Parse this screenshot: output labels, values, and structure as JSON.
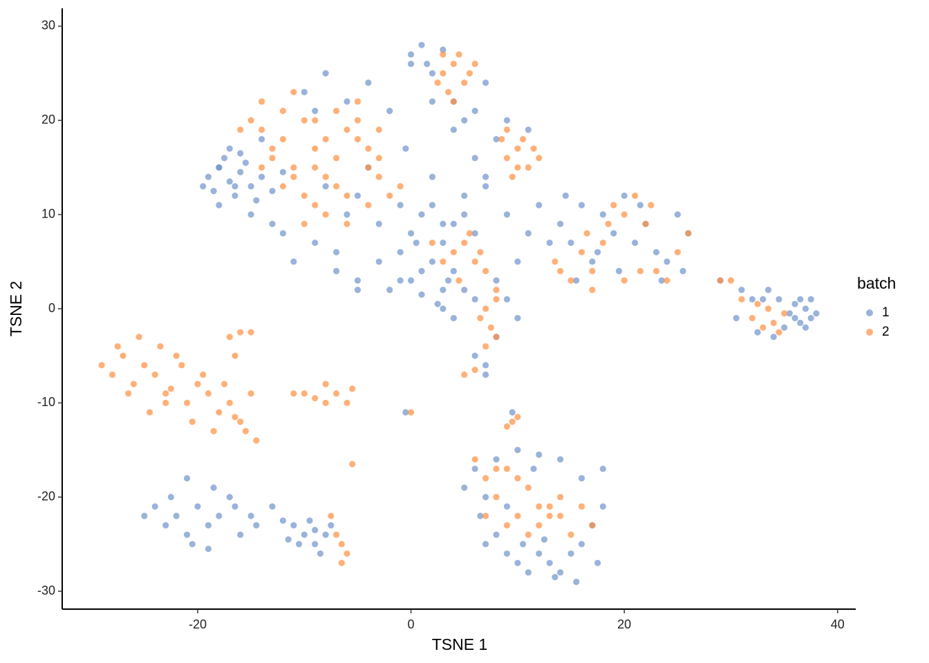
{
  "chart_data": {
    "type": "scatter",
    "x_label": "TSNE 1",
    "y_label": "TSNE 2",
    "legend_title": "batch",
    "legend": "right",
    "xlim": [
      -32.7,
      41.7
    ],
    "ylim": [
      -31.9,
      31.9
    ],
    "xticks": [
      -20,
      0,
      20,
      40
    ],
    "yticks": [
      -30,
      -20,
      -10,
      0,
      10,
      20,
      30
    ],
    "grid": false,
    "series": [
      {
        "name": "1",
        "color": "#6f93cb",
        "x": [
          -19,
          -18,
          -17,
          -16,
          -15,
          -18.5,
          -17.5,
          -16.5,
          -15.5,
          -14,
          -19.5,
          -18,
          -16,
          -14.5,
          -17,
          -13,
          -15,
          -18,
          -12,
          -16.5,
          -10,
          -8,
          -6,
          -4,
          -2,
          0,
          2,
          4,
          6,
          8,
          -12,
          -9,
          -7,
          -3,
          -1,
          1,
          3,
          5,
          7,
          9,
          -3,
          -1,
          0,
          1,
          2,
          3,
          4,
          5,
          6,
          -5,
          -2,
          0,
          1,
          2,
          3,
          4,
          -1,
          0.5,
          2.5,
          3.5,
          0,
          1,
          1.5,
          2,
          3,
          4,
          -0.5,
          5,
          6,
          7,
          -11,
          -13,
          -7,
          -9,
          -5,
          -14,
          6,
          8,
          10,
          12,
          7,
          9,
          11,
          -4,
          -6,
          -8,
          2,
          5,
          11,
          13,
          14,
          15,
          16,
          17,
          18,
          19,
          20,
          21,
          22,
          23,
          24,
          25,
          26,
          15.5,
          17.5,
          19.5,
          21.5,
          23.5,
          25.5,
          14.5,
          36,
          37,
          37.5,
          36.5,
          35.5,
          38,
          37,
          36,
          34,
          33,
          31,
          32,
          29,
          30.5,
          34.5,
          35,
          37.5,
          36.5,
          33.5,
          32.5,
          -24,
          -23,
          -22,
          -21,
          -20,
          -19,
          -18,
          -17,
          -16,
          -15,
          -25,
          -22.5,
          -20.5,
          -18.5,
          -16.5,
          -14.5,
          -13,
          -12,
          -21,
          -19,
          -11,
          -10,
          -9,
          -8,
          -9.5,
          -8.5,
          -10.5,
          -7.5,
          -11.5,
          -9,
          6,
          7,
          8,
          9,
          10,
          11,
          12,
          13,
          14,
          15,
          16,
          17,
          18,
          8,
          10,
          12,
          14,
          16,
          5,
          18,
          9.5,
          11.5,
          13.5,
          7,
          17.5,
          6.5,
          15.5,
          12.5,
          10.5,
          9,
          6,
          7,
          7,
          8,
          4,
          -0.5,
          3,
          9,
          10,
          -5
        ],
        "values": [
          14,
          15,
          13.5,
          14.5,
          13,
          12.5,
          16,
          12,
          15.5,
          14,
          13,
          11,
          16.5,
          11.5,
          17,
          12.5,
          10,
          15,
          14.5,
          13,
          23,
          25,
          22,
          24,
          21,
          26,
          22,
          19,
          21,
          18,
          8,
          7,
          6,
          5,
          3,
          4,
          9,
          12,
          14,
          10,
          9,
          11,
          8,
          10,
          11,
          7,
          9,
          10,
          8,
          12,
          2,
          3,
          1.5,
          5,
          2,
          4,
          6,
          7,
          0.5,
          3,
          27,
          28,
          26,
          25,
          27.5,
          22,
          17,
          20,
          16,
          13,
          5,
          9,
          4,
          21,
          3,
          18,
          1,
          3,
          5,
          11,
          24,
          20,
          19,
          15,
          10,
          13,
          14,
          2,
          8,
          7,
          9,
          7,
          11,
          5,
          10,
          8,
          12,
          7,
          9,
          6,
          5,
          10,
          8,
          3,
          6,
          4,
          11,
          3,
          4,
          12,
          -1,
          0,
          -1,
          1,
          -0.5,
          -0.5,
          -2,
          0.5,
          -3,
          1,
          2,
          1,
          3,
          -1,
          1,
          -2,
          1,
          -1.5,
          2,
          -2.5,
          -21,
          -23,
          -22,
          -24,
          -21,
          -23,
          -22,
          -20,
          -24,
          -22,
          -22,
          -20,
          -25,
          -19,
          -21,
          -23,
          -21,
          -22.5,
          -18,
          -25.5,
          -23,
          -24,
          -25,
          -24,
          -22.5,
          -26,
          -25,
          -23,
          -24.5,
          -23.5,
          -17,
          -20,
          -24,
          -26,
          -27,
          -28,
          -26,
          -27,
          -28,
          -26,
          -25,
          -23,
          -21,
          -16,
          -15,
          -15.5,
          -16,
          -18,
          -19,
          -17,
          -11,
          -17,
          -28.5,
          -25,
          -27,
          -22,
          -29,
          -24.5,
          -25,
          -21,
          -5,
          -6,
          -7,
          -3,
          -1,
          -11,
          0,
          1,
          -1,
          2
        ]
      },
      {
        "name": "2",
        "color": "#ff8f3f",
        "x": [
          -14,
          -12,
          -10,
          -8,
          -6,
          -4,
          -13,
          -11,
          -9,
          -7,
          -5,
          -3,
          -12,
          -10,
          -8,
          -6,
          -4,
          -14,
          -11,
          -9,
          -7,
          -5,
          -3,
          -15,
          -13,
          -9,
          -6,
          -8,
          -10,
          -11,
          -2,
          -4,
          -16,
          -12,
          -7,
          -5,
          -9,
          -3,
          -1,
          -14,
          3,
          4,
          5,
          3.5,
          4.5,
          2.5,
          5.5,
          4,
          3,
          6,
          9,
          10,
          11,
          10.5,
          9.5,
          11.5,
          8.5,
          12,
          10,
          9,
          4,
          5,
          6,
          7,
          3,
          5.5,
          6.5,
          4.5,
          8,
          2,
          7,
          7.5,
          8,
          7,
          6.5,
          8,
          5,
          6,
          0,
          -5.5,
          14,
          15,
          16,
          17,
          18,
          19,
          20,
          21,
          22,
          23,
          24,
          25,
          26,
          17,
          18.5,
          21.5,
          22.5,
          13.5,
          16.5,
          20,
          32,
          33,
          34,
          35,
          33.5,
          34.5,
          32.5,
          31,
          29,
          30,
          -29,
          -28,
          -27,
          -26,
          -25,
          -24,
          -23,
          -22,
          -21,
          -20,
          -19,
          -18,
          -17,
          -16,
          -15,
          -27.5,
          -26.5,
          -25.5,
          -24.5,
          -23.5,
          -22.5,
          -21.5,
          -20.5,
          -19.5,
          -18.5,
          -17.5,
          -16.5,
          -15.5,
          -14.5,
          -23,
          -17,
          -16,
          -15,
          -16.5,
          -10,
          -9,
          -8,
          -7,
          -6,
          -5.5,
          -6.5,
          -7,
          -6,
          -7.5,
          -6.5,
          9.5,
          10,
          9,
          -8,
          -11,
          6,
          7,
          8,
          9,
          10,
          11,
          12,
          13,
          14,
          15,
          16,
          17,
          8,
          10,
          12,
          14,
          7,
          9,
          11,
          13
        ],
        "values": [
          19,
          21,
          20,
          18,
          19,
          17,
          16,
          15,
          17,
          16,
          18,
          14,
          13,
          12,
          14,
          12,
          15,
          22,
          23,
          20,
          21,
          20,
          16,
          20,
          17,
          11,
          9,
          10,
          9,
          14,
          12,
          11,
          19,
          18,
          13,
          22,
          15,
          19,
          13,
          15,
          25,
          26,
          24,
          23,
          27,
          24,
          25,
          22,
          27,
          26,
          16,
          17,
          15,
          18,
          14,
          17,
          18,
          16,
          15,
          19,
          6,
          7,
          5,
          4,
          5,
          8,
          6,
          3,
          2,
          7,
          0,
          -2,
          -3,
          -4,
          -1,
          1,
          -7,
          -6.5,
          -11,
          -16.5,
          4,
          3,
          6,
          2,
          7,
          11,
          10,
          12,
          9,
          4,
          3,
          6,
          8,
          4,
          9,
          4,
          11,
          5,
          8,
          3,
          -1,
          -2,
          -1.5,
          -0.5,
          0,
          -2.5,
          0.5,
          1,
          3,
          3,
          -6,
          -7,
          -5,
          -8,
          -6,
          -7,
          -9,
          -5,
          -10,
          -8,
          -9,
          -11,
          -10,
          -12,
          -9,
          -4,
          -9,
          -3,
          -11,
          -4,
          -8.5,
          -6,
          -12,
          -7,
          -13,
          -8,
          -11.5,
          -13,
          -14,
          -10,
          -3,
          -2.5,
          -2.5,
          -5,
          -9,
          -9.5,
          -8,
          -9,
          -10,
          -8.5,
          -25,
          -24,
          -26,
          -22,
          -27,
          -12,
          -11.5,
          -12.5,
          -10,
          -9,
          -16,
          -18,
          -20,
          -17,
          -22,
          -19,
          -23,
          -21,
          -22,
          -24,
          -21,
          -23,
          -17,
          -18,
          -21,
          -20,
          -22,
          -23,
          -24,
          -22
        ]
      }
    ]
  }
}
